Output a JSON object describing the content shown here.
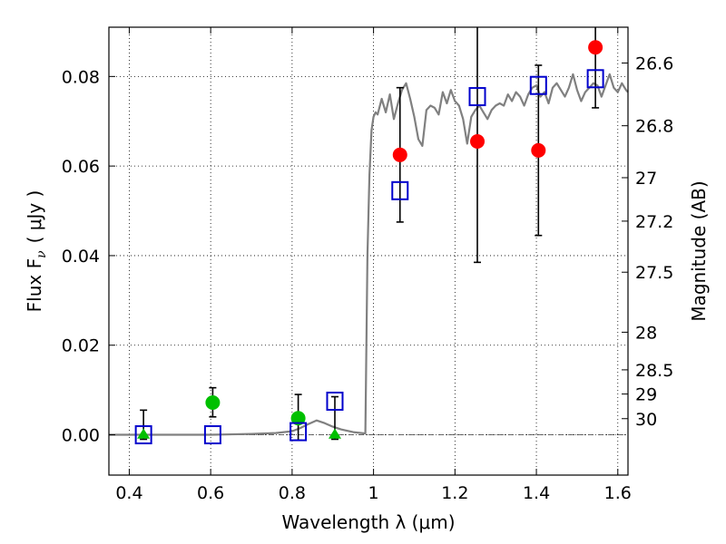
{
  "chart_data": {
    "type": "scatter",
    "xlabel": "Wavelength  λ (μm)",
    "ylabel": "Flux  F",
    "ylabel_sub": "ν",
    "ylabel_unit": "( μJy )",
    "y2label": "Magnitude (AB)",
    "xlim": [
      0.35,
      1.625
    ],
    "ylim": [
      -0.009,
      0.091
    ],
    "grid": true,
    "xticks": [
      0.4,
      0.6,
      0.8,
      1.0,
      1.2,
      1.4,
      1.6
    ],
    "xtick_labels": [
      "0.4",
      "0.6",
      "0.8",
      "1",
      "1.2",
      "1.4",
      "1.6"
    ],
    "yticks": [
      0.0,
      0.02,
      0.04,
      0.06,
      0.08
    ],
    "ytick_labels": [
      "0.00",
      "0.02",
      "0.04",
      "0.06",
      "0.08"
    ],
    "y2ticks": [
      {
        "label": "26.6",
        "flux": 0.083
      },
      {
        "label": "26.8",
        "flux": 0.069
      },
      {
        "label": "27",
        "flux": 0.0574
      },
      {
        "label": "27.2",
        "flux": 0.0477
      },
      {
        "label": "27.5",
        "flux": 0.0363
      },
      {
        "label": "28",
        "flux": 0.0229
      },
      {
        "label": "28.5",
        "flux": 0.0145
      },
      {
        "label": "29",
        "flux": 0.0091
      },
      {
        "label": "30",
        "flux": 0.0036
      }
    ],
    "model_spectrum": {
      "name": "model SED",
      "color": "#808080",
      "x": [
        0.35,
        0.4,
        0.5,
        0.6,
        0.7,
        0.76,
        0.8,
        0.82,
        0.84,
        0.86,
        0.88,
        0.9,
        0.92,
        0.95,
        0.98,
        0.985,
        0.99,
        0.995,
        1.0,
        1.005,
        1.01,
        1.02,
        1.03,
        1.04,
        1.05,
        1.06,
        1.07,
        1.08,
        1.09,
        1.1,
        1.11,
        1.12,
        1.13,
        1.14,
        1.15,
        1.16,
        1.17,
        1.18,
        1.19,
        1.2,
        1.21,
        1.22,
        1.23,
        1.24,
        1.25,
        1.26,
        1.27,
        1.28,
        1.29,
        1.3,
        1.31,
        1.32,
        1.33,
        1.34,
        1.35,
        1.36,
        1.37,
        1.38,
        1.39,
        1.4,
        1.41,
        1.42,
        1.43,
        1.44,
        1.45,
        1.46,
        1.47,
        1.48,
        1.49,
        1.5,
        1.51,
        1.52,
        1.53,
        1.54,
        1.55,
        1.56,
        1.57,
        1.58,
        1.59,
        1.6,
        1.61,
        1.62,
        1.625
      ],
      "y": [
        0.0,
        0.0,
        0.0,
        0.0,
        0.0002,
        0.0004,
        0.0008,
        0.0015,
        0.0024,
        0.0032,
        0.0026,
        0.0018,
        0.0012,
        0.0006,
        0.0003,
        0.04,
        0.058,
        0.068,
        0.071,
        0.072,
        0.0715,
        0.075,
        0.072,
        0.076,
        0.0705,
        0.074,
        0.077,
        0.0785,
        0.075,
        0.071,
        0.066,
        0.0645,
        0.0725,
        0.0735,
        0.073,
        0.0715,
        0.0765,
        0.074,
        0.077,
        0.0745,
        0.0735,
        0.0705,
        0.065,
        0.071,
        0.0725,
        0.0735,
        0.072,
        0.0705,
        0.0725,
        0.0735,
        0.074,
        0.0735,
        0.076,
        0.0745,
        0.0765,
        0.0755,
        0.0735,
        0.076,
        0.0775,
        0.078,
        0.0755,
        0.0765,
        0.074,
        0.0775,
        0.0785,
        0.077,
        0.0755,
        0.0775,
        0.0805,
        0.077,
        0.0745,
        0.0765,
        0.0775,
        0.0785,
        0.078,
        0.0755,
        0.078,
        0.0805,
        0.0775,
        0.0765,
        0.0785,
        0.077,
        0.0765
      ]
    },
    "series": [
      {
        "name": "red detections",
        "marker": "circle",
        "color": "#ff0000",
        "points": [
          {
            "x": 1.065,
            "y": 0.0625,
            "err_low": 0.0475,
            "err_high": 0.0775
          },
          {
            "x": 1.255,
            "y": 0.0655,
            "err_low": 0.0385,
            "err_high": 0.093
          },
          {
            "x": 1.405,
            "y": 0.0635,
            "err_low": 0.0445,
            "err_high": 0.0825
          },
          {
            "x": 1.545,
            "y": 0.0865,
            "err_low": 0.073,
            "err_high": 0.093
          }
        ]
      },
      {
        "name": "green detections",
        "marker": "circle",
        "color": "#00c000",
        "points": [
          {
            "x": 0.605,
            "y": 0.0072,
            "err_low": 0.004,
            "err_high": 0.0105
          },
          {
            "x": 0.815,
            "y": 0.0037,
            "err_low": -0.0012,
            "err_high": 0.009
          }
        ]
      },
      {
        "name": "green upper limits",
        "marker": "triangle",
        "color": "#00c000",
        "points": [
          {
            "x": 0.435,
            "y": 0.0,
            "err_low": -0.001,
            "err_high": 0.0055
          },
          {
            "x": 0.905,
            "y": 0.0,
            "err_low": -0.001,
            "err_high": 0.0085
          }
        ]
      },
      {
        "name": "model photometry",
        "marker": "square-open",
        "color": "#0000cc",
        "points": [
          {
            "x": 0.435,
            "y": 0.0
          },
          {
            "x": 0.605,
            "y": 0.0
          },
          {
            "x": 0.815,
            "y": 0.0007
          },
          {
            "x": 0.905,
            "y": 0.0075
          },
          {
            "x": 1.065,
            "y": 0.0545
          },
          {
            "x": 1.255,
            "y": 0.0755
          },
          {
            "x": 1.405,
            "y": 0.078
          },
          {
            "x": 1.545,
            "y": 0.0795
          }
        ]
      }
    ]
  }
}
